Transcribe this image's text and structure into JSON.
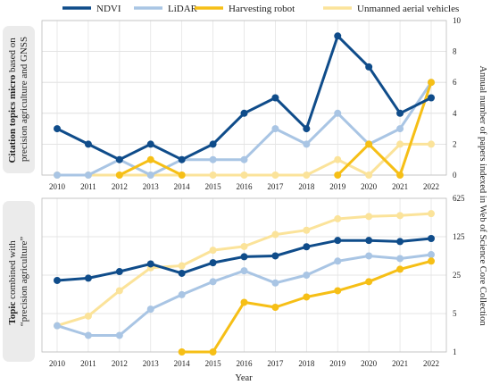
{
  "legend": [
    {
      "name": "NDVI",
      "color": "#0f4c8a"
    },
    {
      "name": "LiDAR",
      "color": "#a9c5e4"
    },
    {
      "name": "Harvesting robot",
      "color": "#f6bf16"
    },
    {
      "name": "Unmanned aerial vehicles",
      "color": "#fbe39a"
    }
  ],
  "shared_axis": {
    "right_label": "Annual number of papers indexed in Web of Science Core Collection",
    "xlabel": "Year"
  },
  "chart_data": [
    {
      "type": "line",
      "panel_label_bold": "Citation topics micro",
      "panel_label_line1_rest": " based on",
      "panel_label_line2": "precision agriculture and GNSS",
      "x": [
        2010,
        2011,
        2012,
        2013,
        2014,
        2015,
        2016,
        2017,
        2018,
        2019,
        2020,
        2021,
        2022
      ],
      "y_scale": "linear",
      "ylim": [
        0,
        10
      ],
      "yticks": [
        0,
        2,
        4,
        6,
        8,
        10
      ],
      "grid": true,
      "series": [
        {
          "name": "NDVI",
          "color": "#0f4c8a",
          "values": [
            3,
            2,
            1,
            2,
            1,
            2,
            4,
            5,
            3,
            9,
            7,
            4,
            5
          ]
        },
        {
          "name": "LiDAR",
          "color": "#a9c5e4",
          "values": [
            0,
            0,
            1,
            0,
            1,
            1,
            1,
            3,
            2,
            4,
            2,
            3,
            6
          ]
        },
        {
          "name": "Harvesting robot",
          "color": "#f6bf16",
          "values": [
            null,
            null,
            0,
            1,
            0,
            null,
            null,
            null,
            null,
            0,
            2,
            0,
            6
          ]
        },
        {
          "name": "Unmanned aerial vehicles",
          "color": "#fbe39a",
          "values": [
            0,
            0,
            0,
            0,
            0,
            0,
            0,
            0,
            0,
            1,
            0,
            2,
            2
          ]
        }
      ]
    },
    {
      "type": "line",
      "panel_label_bold": "Topic",
      "panel_label_line1_rest": " combined with",
      "panel_label_line2": "“precision agriculture”",
      "x": [
        2010,
        2011,
        2012,
        2013,
        2014,
        2015,
        2016,
        2017,
        2018,
        2019,
        2020,
        2021,
        2022
      ],
      "y_scale": "log5",
      "ylim": [
        1,
        625
      ],
      "yticks": [
        1,
        5,
        25,
        125,
        625
      ],
      "grid": true,
      "series": [
        {
          "name": "NDVI",
          "color": "#0f4c8a",
          "values": [
            20,
            22,
            29,
            40,
            27,
            42,
            54,
            56,
            82,
            107,
            107,
            102,
            116
          ]
        },
        {
          "name": "LiDAR",
          "color": "#a9c5e4",
          "values": [
            3,
            2,
            2,
            6,
            11,
            19,
            30,
            18,
            25,
            45,
            56,
            50,
            59
          ]
        },
        {
          "name": "Harvesting robot",
          "color": "#f6bf16",
          "values": [
            null,
            null,
            null,
            null,
            1,
            1,
            8,
            6.5,
            10,
            13,
            19,
            32,
            45
          ]
        },
        {
          "name": "Unmanned aerial vehicles",
          "color": "#fbe39a",
          "values": [
            3,
            4.5,
            13,
            34,
            37,
            71,
            83,
            137,
            164,
            265,
            292,
            303,
            329
          ]
        }
      ]
    }
  ]
}
